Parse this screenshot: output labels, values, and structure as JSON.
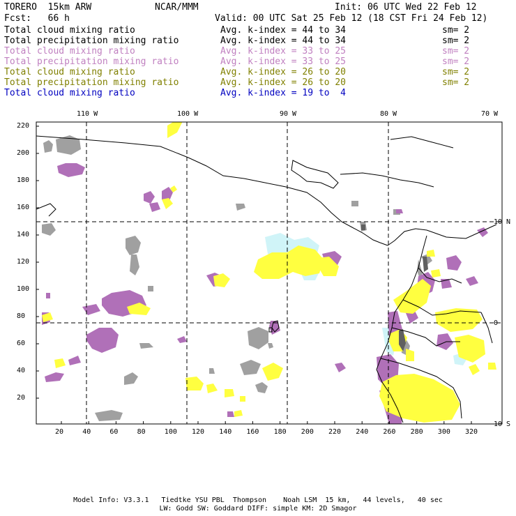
{
  "header": {
    "model": "TORERO  15km ARW",
    "institution": "NCAR/MMM",
    "init": "Init: 06 UTC Wed 22 Feb 12",
    "fcst": "Fcst:   66 h",
    "valid": "Valid: 00 UTC Sat 25 Feb 12 (18 CST Fri 24 Feb 12)"
  },
  "legend": [
    {
      "field": "Total cloud mixing ratio",
      "kindex": "Avg. k-index = 44 to 34",
      "sm": "sm= 2",
      "color": "#000000"
    },
    {
      "field": "Total precipitation mixing ratio",
      "kindex": "Avg. k-index = 44 to 34",
      "sm": "sm= 2",
      "color": "#000000"
    },
    {
      "field": "Total cloud mixing ratio",
      "kindex": "Avg. k-index = 33 to 25",
      "sm": "sm= 2",
      "color": "#c080c0"
    },
    {
      "field": "Total precipitation mixing ratio",
      "kindex": "Avg. k-index = 33 to 25",
      "sm": "sm= 2",
      "color": "#c080c0"
    },
    {
      "field": "Total cloud mixing ratio",
      "kindex": "Avg. k-index = 26 to 20",
      "sm": "sm= 2",
      "color": "#808000"
    },
    {
      "field": "Total precipitation mixing ratio",
      "kindex": "Avg. k-index = 26 to 20",
      "sm": "sm= 2",
      "color": "#808000"
    },
    {
      "field": "Total cloud mixing ratio",
      "kindex": "Avg. k-index = 19 to  4",
      "sm": "",
      "color": "#0000c0"
    }
  ],
  "axes": {
    "top_lon_labels": [
      "110 W",
      "100 W",
      "90 W",
      "80 W",
      "70 W"
    ],
    "right_lat_labels": [
      "10 N",
      "0",
      "10 S"
    ],
    "left_ticks": [
      "220",
      "200",
      "180",
      "160",
      "140",
      "120",
      "100",
      "80",
      "60",
      "40",
      "20"
    ],
    "bottom_ticks": [
      "20",
      "40",
      "60",
      "80",
      "100",
      "120",
      "140",
      "160",
      "180",
      "200",
      "220",
      "240",
      "260",
      "280",
      "300",
      "320"
    ]
  },
  "colors": {
    "gray": "#a0a0a0",
    "purple": "#b070b8",
    "yellow": "#ffff40",
    "cyan": "#d0f4f8"
  },
  "footer": {
    "line1": "Model Info: V3.3.1   Tiedtke YSU PBL  Thompson    Noah LSM  15 km,   44 levels,   40 sec",
    "line2": "LW: Godd SW: Goddard DIFF: simple KM: 2D Smagor"
  }
}
